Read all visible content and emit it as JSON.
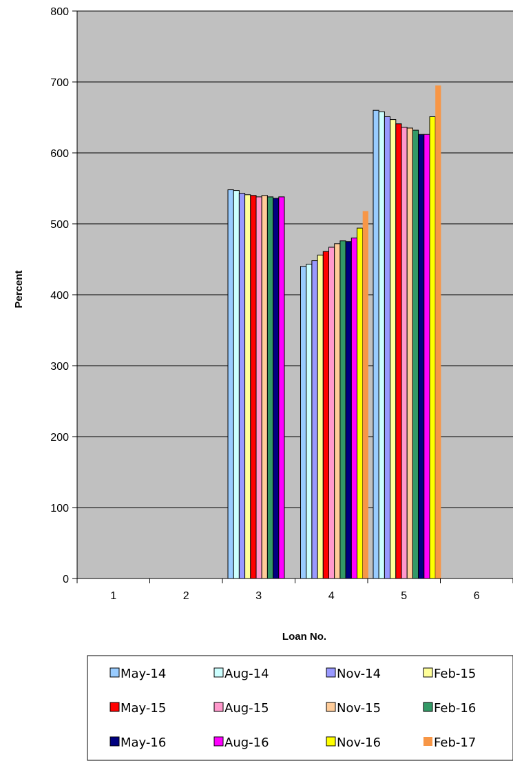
{
  "chart_data": {
    "type": "bar",
    "title": "",
    "xlabel": "Loan No.",
    "ylabel": "Percent",
    "ylim": [
      0,
      800
    ],
    "yticks": [
      "0",
      "100",
      "200",
      "300",
      "400",
      "500",
      "600",
      "700",
      "800"
    ],
    "categories": [
      "1",
      "2",
      "3",
      "4",
      "5",
      "6"
    ],
    "grid": true,
    "legend_position": "bottom",
    "series": [
      {
        "name": "May-14",
        "color": "#99CCFF",
        "values": [
          null,
          null,
          548,
          440,
          660,
          null
        ]
      },
      {
        "name": "Aug-14",
        "color": "#CCFFFF",
        "values": [
          null,
          null,
          547,
          443,
          658,
          null
        ]
      },
      {
        "name": "Nov-14",
        "color": "#9999FF",
        "values": [
          null,
          null,
          543,
          448,
          651,
          null
        ]
      },
      {
        "name": "Feb-15",
        "color": "#FFFF99",
        "values": [
          null,
          null,
          541,
          456,
          647,
          null
        ]
      },
      {
        "name": "May-15",
        "color": "#FF0000",
        "values": [
          null,
          null,
          540,
          461,
          641,
          null
        ]
      },
      {
        "name": "Aug-15",
        "color": "#FF99CC",
        "values": [
          null,
          null,
          538,
          467,
          636,
          null
        ]
      },
      {
        "name": "Nov-15",
        "color": "#FFCC99",
        "values": [
          null,
          null,
          540,
          472,
          635,
          null
        ]
      },
      {
        "name": "Feb-16",
        "color": "#339966",
        "values": [
          null,
          null,
          538,
          476,
          632,
          null
        ]
      },
      {
        "name": "May-16",
        "color": "#000080",
        "values": [
          null,
          null,
          536,
          475,
          626,
          null
        ]
      },
      {
        "name": "Aug-16",
        "color": "#FF00FF",
        "values": [
          null,
          null,
          538,
          480,
          626,
          null
        ]
      },
      {
        "name": "Nov-16",
        "color": "#FFFF00",
        "values": [
          null,
          null,
          null,
          494,
          651,
          null
        ]
      },
      {
        "name": "Feb-17",
        "color": "#F79646",
        "values": [
          null,
          null,
          null,
          518,
          695,
          null
        ]
      }
    ]
  },
  "colors": {
    "plot_background": "#C0C0C0",
    "gridline": "#000000"
  }
}
